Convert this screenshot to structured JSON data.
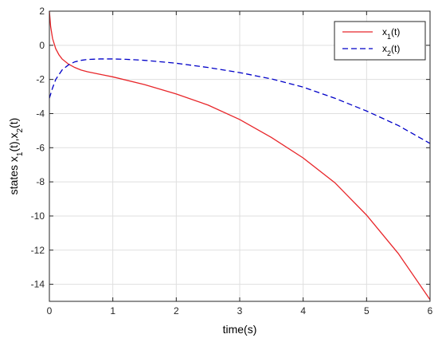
{
  "chart_data": {
    "type": "line",
    "title": "",
    "xlabel": "time(s)",
    "ylabel": "states x_1(t),x_2(t)",
    "xlim": [
      0,
      6
    ],
    "ylim": [
      -15,
      2
    ],
    "xticks": [
      0,
      1,
      2,
      3,
      4,
      5,
      6
    ],
    "yticks": [
      2,
      0,
      -2,
      -4,
      -6,
      -8,
      -10,
      -12,
      -14
    ],
    "grid": true,
    "legend_position": "top-right",
    "series": [
      {
        "name": "x1(t)",
        "legend_base": "x",
        "legend_sub": "1",
        "legend_suffix": "(t)",
        "color": "#e8262a",
        "style": "solid",
        "x": [
          0,
          0.02,
          0.05,
          0.1,
          0.15,
          0.2,
          0.3,
          0.4,
          0.5,
          0.6,
          0.8,
          1.0,
          1.5,
          2.0,
          2.5,
          3.0,
          3.5,
          4.0,
          4.5,
          5.0,
          5.5,
          6.0
        ],
        "y": [
          2.0,
          1.1,
          0.4,
          -0.2,
          -0.55,
          -0.8,
          -1.1,
          -1.3,
          -1.45,
          -1.55,
          -1.7,
          -1.85,
          -2.3,
          -2.85,
          -3.5,
          -4.35,
          -5.4,
          -6.6,
          -8.05,
          -9.95,
          -12.2,
          -14.9
        ]
      },
      {
        "name": "x2(t)",
        "legend_base": "x",
        "legend_sub": "2",
        "legend_suffix": "(t)",
        "color": "#0000c8",
        "style": "dashed",
        "x": [
          0,
          0.05,
          0.1,
          0.2,
          0.3,
          0.4,
          0.5,
          0.6,
          0.8,
          1.0,
          1.2,
          1.5,
          2.0,
          2.5,
          3.0,
          3.5,
          4.0,
          4.5,
          5.0,
          5.5,
          6.0
        ],
        "y": [
          -3.1,
          -2.5,
          -2.0,
          -1.45,
          -1.15,
          -0.97,
          -0.88,
          -0.83,
          -0.8,
          -0.8,
          -0.82,
          -0.88,
          -1.05,
          -1.3,
          -1.6,
          -1.97,
          -2.45,
          -3.1,
          -3.85,
          -4.7,
          -5.75
        ]
      }
    ]
  }
}
